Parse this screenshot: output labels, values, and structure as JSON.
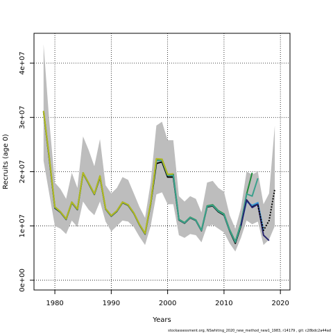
{
  "chart_data": {
    "type": "line",
    "xlabel": "Years",
    "ylabel": "Recruits (age 0)",
    "xlim": [
      1976.3,
      2021.7
    ],
    "ylim": [
      -1800000,
      45500000
    ],
    "x_ticks": [
      1980,
      1990,
      2000,
      2010,
      2020
    ],
    "y_ticks": [
      0,
      10000000,
      20000000,
      30000000,
      40000000
    ],
    "y_tick_labels": [
      "0e+00",
      "1e+07",
      "2e+07",
      "3e+07",
      "4e+07"
    ],
    "grid": true,
    "grid_style": "dotted",
    "footnote": "stockassessment.org, NSwhiting_2020_new_method_new1_1983, r14179 , git: c28bdc2a44ad",
    "colors": {
      "band": "#bdbdbd",
      "green": "#1f8b3a",
      "teal": "#3aa08c",
      "navy": "#26236e",
      "lightblue": "#3a9bd9",
      "black": "#000000",
      "olive": "#b5b81e"
    },
    "band": {
      "x": [
        1978,
        1979,
        1980,
        1981,
        1982,
        1983,
        1984,
        1985,
        1986,
        1987,
        1988,
        1989,
        1990,
        1991,
        1992,
        1993,
        1994,
        1995,
        1996,
        1997,
        1998,
        1999,
        2000,
        2001,
        2002,
        2003,
        2004,
        2005,
        2006,
        2007,
        2008,
        2009,
        2010,
        2011,
        2012,
        2013,
        2014,
        2015,
        2016,
        2017,
        2018,
        2019
      ],
      "upper": [
        43500000,
        29500000,
        18000000,
        16800000,
        15000000,
        19800000,
        17000000,
        26500000,
        24000000,
        21000000,
        26000000,
        17500000,
        16000000,
        17000000,
        19000000,
        18500000,
        16000000,
        13500000,
        11500000,
        18000000,
        28500000,
        29200000,
        25800000,
        25800000,
        15500000,
        14500000,
        15500000,
        15000000,
        12500000,
        18000000,
        18300000,
        17000000,
        16300000,
        12000000,
        9500000,
        13300000,
        20000000,
        19500000,
        20000000,
        14000000,
        16000000,
        28500000
      ],
      "lower": [
        22000000,
        16000000,
        10000000,
        9500000,
        8500000,
        11000000,
        9800000,
        14500000,
        13000000,
        12000000,
        14500000,
        10800000,
        9000000,
        10000000,
        11000000,
        10800000,
        9800000,
        8000000,
        6500000,
        10000000,
        15800000,
        16200000,
        14000000,
        14000000,
        8300000,
        7800000,
        8500000,
        8300000,
        7000000,
        10000000,
        10200000,
        9500000,
        8800000,
        6800000,
        5300000,
        7800000,
        11000000,
        10300000,
        10800000,
        6500000,
        7500000,
        10000000
      ]
    },
    "series": [
      {
        "color": "#000000",
        "dash": "solid",
        "x": [
          1978,
          1979,
          1980,
          1981,
          1982,
          1983,
          1984,
          1985,
          1986,
          1987,
          1988,
          1989,
          1990,
          1991,
          1992,
          1993,
          1994,
          1995,
          1996,
          1997,
          1998,
          1999,
          2000,
          2001,
          2002,
          2003,
          2004,
          2005,
          2006,
          2007,
          2008,
          2009,
          2010,
          2011,
          2012,
          2013,
          2014,
          2015,
          2016
        ],
        "values": [
          31000000,
          22500000,
          13300000,
          12500000,
          11200000,
          14300000,
          13000000,
          19700000,
          17800000,
          15800000,
          19000000,
          13100000,
          11800000,
          12700000,
          14300000,
          13800000,
          12300000,
          10200000,
          8500000,
          14000000,
          21500000,
          21800000,
          19000000,
          19000000,
          11100000,
          10500000,
          11500000,
          11000000,
          9100000,
          13500000,
          13700000,
          12600000,
          12000000,
          9100000,
          6800000,
          10000000,
          14800000,
          13500000,
          14200000
        ]
      },
      {
        "color": "#1f8b3a",
        "dash": "solid",
        "x": [
          1978,
          1979,
          1980,
          1981,
          1982,
          1983,
          1984,
          1985,
          1986,
          1987,
          1988,
          1989,
          1990,
          1991,
          1992,
          1993,
          1994,
          1995,
          1996,
          1997,
          1998,
          1999,
          2000,
          2001,
          2002,
          2003,
          2004,
          2005,
          2006,
          2007,
          2008,
          2009,
          2010,
          2011,
          2012,
          2013,
          2014,
          2015
        ],
        "values": [
          31200000,
          22800000,
          13500000,
          12600000,
          11300000,
          14400000,
          13100000,
          19800000,
          17900000,
          15900000,
          19200000,
          13200000,
          11900000,
          12800000,
          14400000,
          13900000,
          12400000,
          10300000,
          8600000,
          14200000,
          22300000,
          22300000,
          19500000,
          19500000,
          11200000,
          10600000,
          11600000,
          11100000,
          9200000,
          13700000,
          13900000,
          12800000,
          12200000,
          9300000,
          7100000,
          10400000,
          15800000,
          19800000
        ]
      },
      {
        "color": "#3aa08c",
        "dash": "solid",
        "x": [
          1978,
          1979,
          1980,
          1981,
          1982,
          1983,
          1984,
          1985,
          1986,
          1987,
          1988,
          1989,
          1990,
          1991,
          1992,
          1993,
          1994,
          1995,
          1996,
          1997,
          1998,
          1999,
          2000,
          2001,
          2002,
          2003,
          2004,
          2005,
          2006,
          2007,
          2008,
          2009,
          2010,
          2011,
          2012,
          2013,
          2014,
          2015,
          2016
        ],
        "values": [
          31100000,
          22700000,
          13400000,
          12550000,
          11250000,
          14350000,
          13050000,
          19750000,
          17850000,
          15850000,
          19100000,
          13150000,
          11850000,
          12750000,
          14350000,
          13850000,
          12350000,
          10250000,
          8550000,
          14100000,
          22000000,
          22100000,
          19300000,
          19300000,
          11150000,
          10550000,
          11550000,
          11050000,
          9150000,
          13600000,
          13800000,
          12700000,
          12100000,
          9200000,
          7000000,
          10200000,
          15900000,
          15500000,
          18800000
        ]
      },
      {
        "color": "#3a9bd9",
        "dash": "solid",
        "x": [
          2013,
          2014,
          2015,
          2016,
          2017
        ],
        "values": [
          10100000,
          14500000,
          13800000,
          14300000,
          9200000
        ]
      },
      {
        "color": "#26236e",
        "dash": "solid",
        "x": [
          2013,
          2014,
          2015,
          2016,
          2017,
          2018
        ],
        "values": [
          10000000,
          14800000,
          13400000,
          14000000,
          8300000,
          7300000
        ]
      },
      {
        "color": "#000000",
        "dash": "dotted",
        "x": [
          2016,
          2017,
          2018,
          2019
        ],
        "values": [
          13800000,
          9200000,
          11000000,
          16800000
        ]
      },
      {
        "color": "#b5b81e",
        "dash": "solid",
        "x": [
          1978,
          1979,
          1980,
          1981,
          1982,
          1983,
          1984,
          1985,
          1986,
          1987,
          1988,
          1989,
          1990,
          1991,
          1992,
          1993,
          1994,
          1995,
          1996,
          1997,
          1998,
          1999,
          2000,
          2001
        ],
        "values": [
          31200000,
          22800000,
          13500000,
          12600000,
          11300000,
          14400000,
          13100000,
          19800000,
          17900000,
          15900000,
          19200000,
          13200000,
          11900000,
          12800000,
          14400000,
          13900000,
          12400000,
          10300000,
          8600000,
          14200000,
          22400000,
          22300000,
          19500000,
          19600000
        ]
      }
    ]
  }
}
